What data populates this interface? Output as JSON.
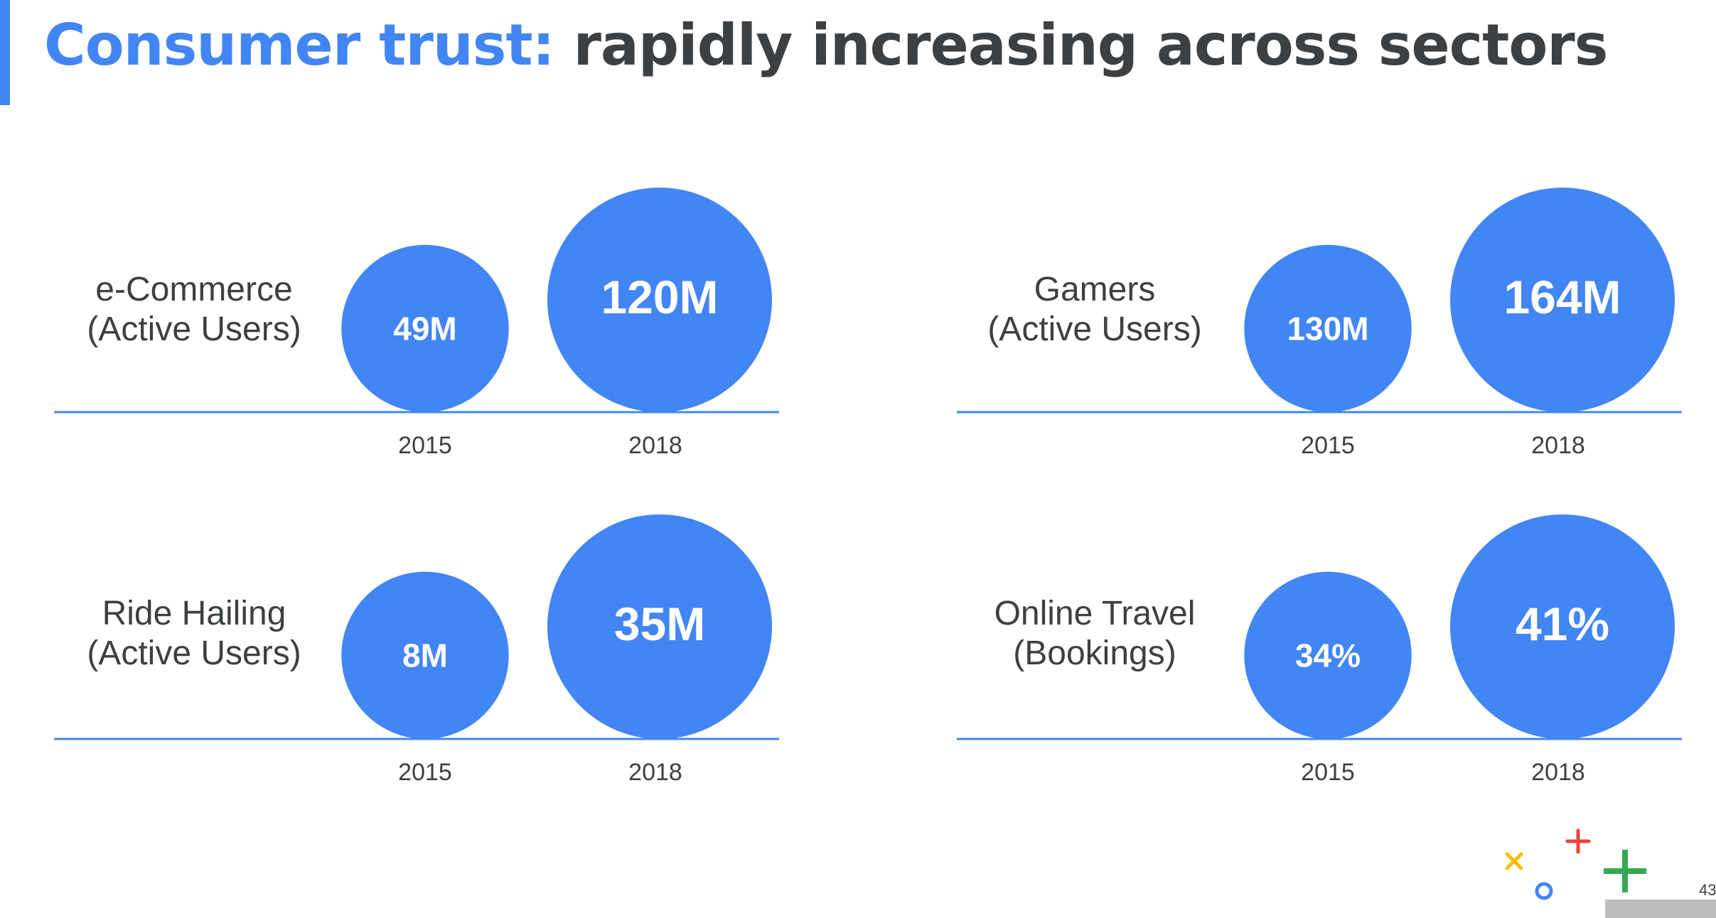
{
  "title": {
    "highlight": "Consumer trust:",
    "rest": " rapidly increasing across sectors"
  },
  "colors": {
    "accent": "#4285f4",
    "title_dark": "#3c4043",
    "bubble": "#4285f4",
    "baseline": "#4285f4"
  },
  "chart_data": [
    {
      "type": "bubble",
      "label_line1": "e-Commerce",
      "label_line2": "(Active Users)",
      "categories": [
        "2015",
        "2018"
      ],
      "values": [
        49,
        120
      ],
      "value_labels": [
        "49M",
        "120M"
      ]
    },
    {
      "type": "bubble",
      "label_line1": "Gamers",
      "label_line2": "(Active Users)",
      "categories": [
        "2015",
        "2018"
      ],
      "values": [
        130,
        164
      ],
      "value_labels": [
        "130M",
        "164M"
      ]
    },
    {
      "type": "bubble",
      "label_line1": "Ride Hailing",
      "label_line2": "(Active Users)",
      "categories": [
        "2015",
        "2018"
      ],
      "values": [
        8,
        35
      ],
      "value_labels": [
        "8M",
        "35M"
      ]
    },
    {
      "type": "bubble",
      "label_line1": "Online Travel",
      "label_line2": "(Bookings)",
      "categories": [
        "2015",
        "2018"
      ],
      "values": [
        34,
        41
      ],
      "value_labels": [
        "34%",
        "41%"
      ]
    }
  ],
  "page_number": "43",
  "decorations": [
    {
      "name": "yellow-x-icon",
      "color": "#fbbc04"
    },
    {
      "name": "red-plus-icon",
      "color": "#ea4335"
    },
    {
      "name": "blue-circle-icon",
      "color": "#4285f4"
    },
    {
      "name": "green-plus-icon",
      "color": "#34a853"
    }
  ]
}
